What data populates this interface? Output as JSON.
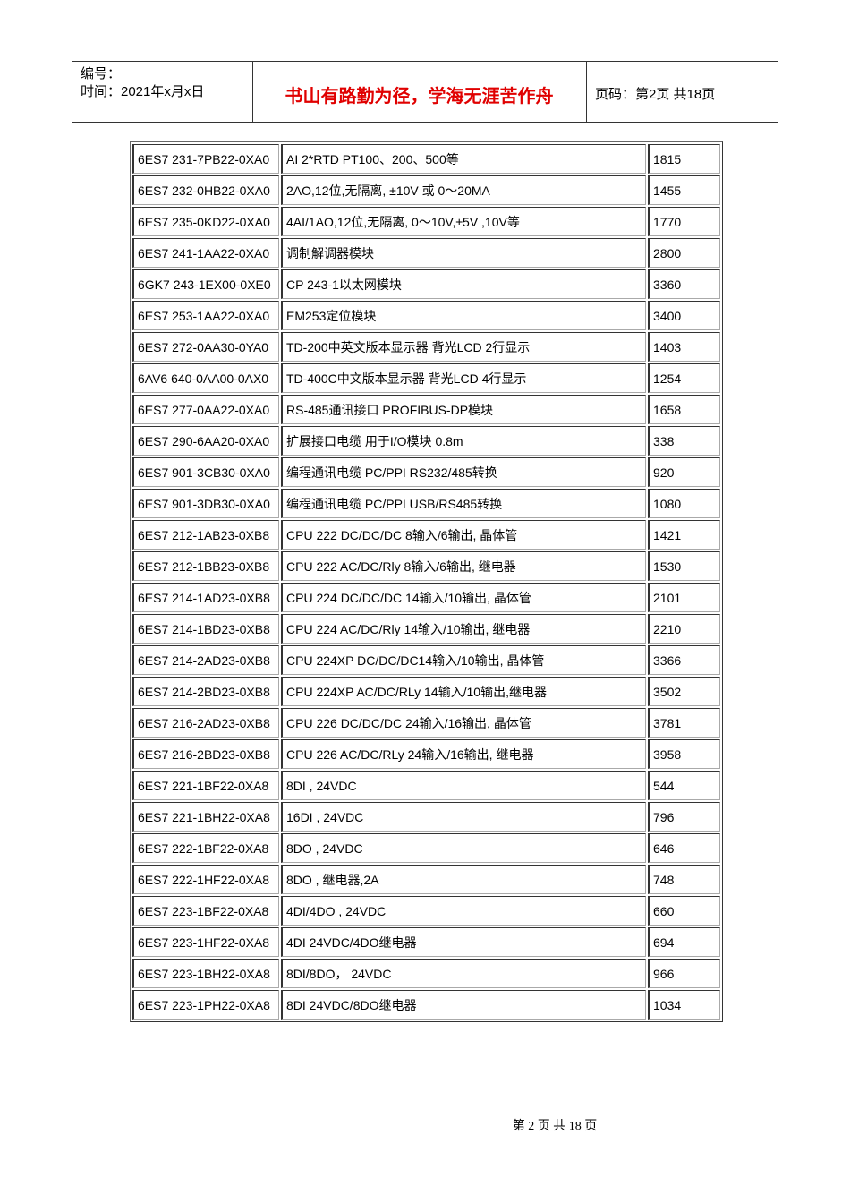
{
  "header": {
    "number": "编号：",
    "time": "时间：2021年x月x日",
    "motto": "书山有路勤为径，学海无涯苦作舟",
    "page": "页码：第2页 共18页"
  },
  "table": {
    "rows": [
      [
        "6ES7 231-7PB22-0XA0",
        "AI 2*RTD PT100、200、500等",
        1815
      ],
      [
        "6ES7 232-0HB22-0XA0",
        "2AO,12位,无隔离, ±10V 或 0～20MA",
        1455
      ],
      [
        "6ES7 235-0KD22-0XA0",
        "4AI/1AO,12位,无隔离, 0～10V,±5V ,10V等",
        1770
      ],
      [
        "6ES7 241-1AA22-0XA0",
        "调制解调器模块",
        2800
      ],
      [
        "6GK7 243-1EX00-0XE0",
        "CP 243-1以太网模块",
        3360
      ],
      [
        "6ES7 253-1AA22-0XA0",
        "EM253定位模块",
        3400
      ],
      [
        "6ES7 272-0AA30-0YA0",
        "TD-200中英文版本显示器 背光LCD 2行显示",
        1403
      ],
      [
        "6AV6 640-0AA00-0AX0",
        "TD-400C中文版本显示器 背光LCD 4行显示",
        1254
      ],
      [
        "6ES7 277-0AA22-0XA0",
        "RS-485通讯接口 PROFIBUS-DP模块",
        1658
      ],
      [
        "6ES7 290-6AA20-0XA0",
        "扩展接口电缆 用于I/O模块 0.8m",
        338
      ],
      [
        "6ES7 901-3CB30-0XA0",
        "编程通讯电缆 PC/PPI RS232/485转换",
        920
      ],
      [
        "6ES7 901-3DB30-0XA0",
        "编程通讯电缆 PC/PPI USB/RS485转换",
        1080
      ],
      [
        "6ES7 212-1AB23-0XB8",
        "CPU 222 DC/DC/DC 8输入/6输出, 晶体管",
        1421
      ],
      [
        "6ES7 212-1BB23-0XB8",
        "CPU 222 AC/DC/Rly 8输入/6输出, 继电器",
        1530
      ],
      [
        "6ES7 214-1AD23-0XB8",
        "CPU 224 DC/DC/DC 14输入/10输出, 晶体管",
        2101
      ],
      [
        "6ES7 214-1BD23-0XB8",
        "CPU 224 AC/DC/Rly 14输入/10输出, 继电器",
        2210
      ],
      [
        "6ES7 214-2AD23-0XB8",
        "CPU 224XP DC/DC/DC14输入/10输出, 晶体管",
        3366
      ],
      [
        "6ES7 214-2BD23-0XB8",
        "CPU 224XP AC/DC/RLy 14输入/10输出,继电器",
        3502
      ],
      [
        "6ES7 216-2AD23-0XB8",
        "CPU 226 DC/DC/DC 24输入/16输出, 晶体管",
        3781
      ],
      [
        "6ES7 216-2BD23-0XB8",
        "CPU 226 AC/DC/RLy 24输入/16输出, 继电器",
        3958
      ],
      [
        "6ES7 221-1BF22-0XA8",
        "8DI , 24VDC",
        544
      ],
      [
        "6ES7 221-1BH22-0XA8",
        "16DI , 24VDC",
        796
      ],
      [
        "6ES7 222-1BF22-0XA8",
        "8DO , 24VDC",
        646
      ],
      [
        "6ES7 222-1HF22-0XA8",
        "8DO , 继电器,2A",
        748
      ],
      [
        "6ES7 223-1BF22-0XA8",
        "4DI/4DO , 24VDC",
        660
      ],
      [
        "6ES7 223-1HF22-0XA8",
        "4DI 24VDC/4DO继电器",
        694
      ],
      [
        "6ES7 223-1BH22-0XA8",
        "8DI/8DO， 24VDC",
        966
      ],
      [
        "6ES7 223-1PH22-0XA8",
        "8DI 24VDC/8DO继电器",
        1034
      ]
    ]
  },
  "footer": {
    "page": "第 2 页 共 18 页"
  }
}
